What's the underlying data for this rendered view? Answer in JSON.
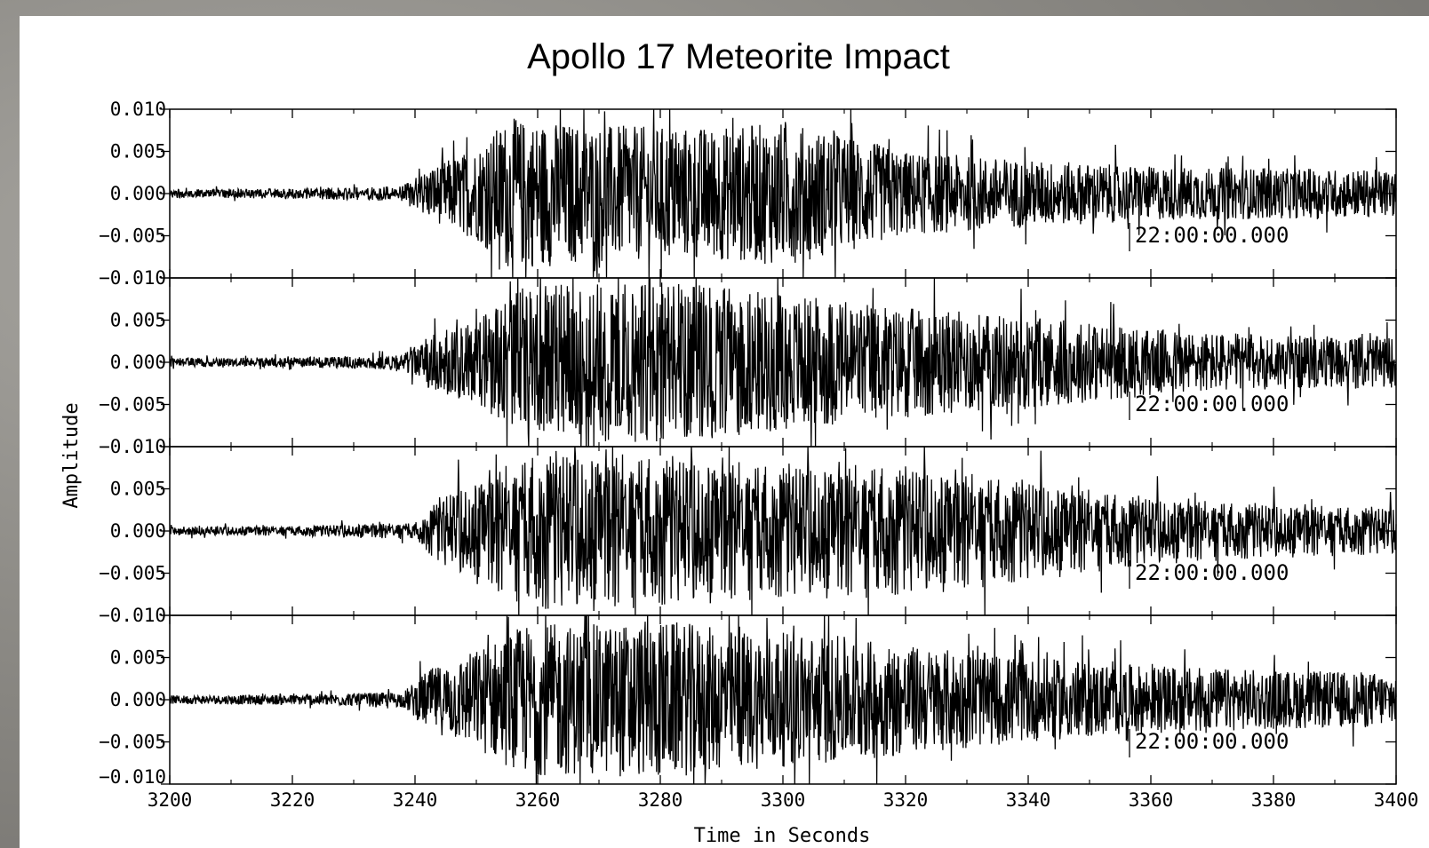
{
  "chart_data": {
    "type": "line",
    "title": "Apollo 17 Meteorite Impact",
    "xlabel": "Time in Seconds",
    "ylabel": "Amplitude",
    "xlim": [
      3200,
      3400
    ],
    "ylim": [
      -0.01,
      0.01
    ],
    "x_ticks": [
      3200,
      3220,
      3240,
      3260,
      3280,
      3300,
      3320,
      3340,
      3360,
      3380,
      3400
    ],
    "x_tick_labels": [
      "3200",
      "3220",
      "3240",
      "3260",
      "3280",
      "3300",
      "3320",
      "3340",
      "3360",
      "3380",
      "3400"
    ],
    "y_ticks": [
      0.01,
      0.005,
      0.0,
      -0.005,
      -0.01
    ],
    "y_tick_labels": [
      "0.010",
      "0.005",
      "0.000",
      "−0.005",
      "−0.010"
    ],
    "grid": false,
    "legend": "none",
    "line_color": "#000000",
    "panels": [
      {
        "timestamp": "22:00:00.000",
        "envelope": {
          "x": [
            3200,
            3220,
            3238,
            3242,
            3250,
            3255,
            3265,
            3275,
            3290,
            3300,
            3310,
            3320,
            3340,
            3360,
            3380,
            3400
          ],
          "amp": [
            0.0005,
            0.0006,
            0.0009,
            0.003,
            0.0055,
            0.009,
            0.0085,
            0.008,
            0.008,
            0.0085,
            0.007,
            0.005,
            0.004,
            0.0032,
            0.003,
            0.0028
          ]
        }
      },
      {
        "timestamp": "22:00:00.000",
        "envelope": {
          "x": [
            3200,
            3220,
            3238,
            3242,
            3250,
            3258,
            3270,
            3280,
            3290,
            3300,
            3310,
            3320,
            3340,
            3360,
            3380,
            3400
          ],
          "amp": [
            0.0005,
            0.0006,
            0.0009,
            0.003,
            0.005,
            0.009,
            0.0095,
            0.0095,
            0.009,
            0.008,
            0.0075,
            0.0065,
            0.0055,
            0.004,
            0.0032,
            0.003
          ]
        }
      },
      {
        "timestamp": "22:00:00.000",
        "envelope": {
          "x": [
            3200,
            3220,
            3240,
            3244,
            3252,
            3260,
            3270,
            3280,
            3290,
            3300,
            3315,
            3330,
            3340,
            3360,
            3380,
            3400
          ],
          "amp": [
            0.0005,
            0.0006,
            0.001,
            0.004,
            0.007,
            0.0095,
            0.0095,
            0.009,
            0.0085,
            0.008,
            0.008,
            0.007,
            0.006,
            0.004,
            0.0032,
            0.0028
          ]
        }
      },
      {
        "timestamp": "22:00:00.000",
        "envelope": {
          "x": [
            3200,
            3220,
            3238,
            3242,
            3250,
            3258,
            3270,
            3280,
            3290,
            3300,
            3310,
            3320,
            3340,
            3360,
            3380,
            3400
          ],
          "amp": [
            0.0005,
            0.0006,
            0.0009,
            0.0035,
            0.006,
            0.009,
            0.009,
            0.0095,
            0.0085,
            0.008,
            0.0075,
            0.0065,
            0.005,
            0.004,
            0.0035,
            0.0032
          ]
        }
      }
    ]
  }
}
